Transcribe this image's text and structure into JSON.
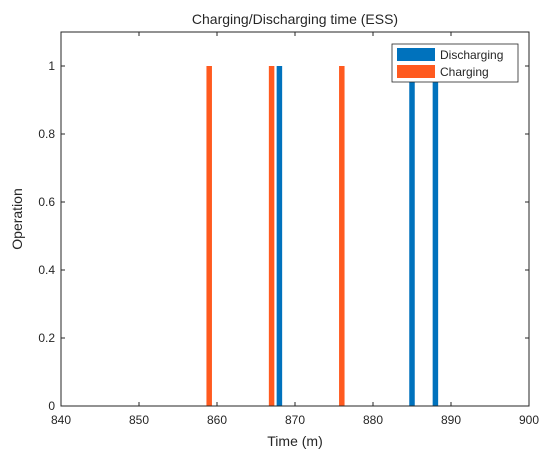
{
  "chart_data": {
    "type": "bar",
    "title": "Charging/Discharging time (ESS)",
    "xlabel": "Time (m)",
    "ylabel": "Operation",
    "xlim": [
      840,
      900
    ],
    "ylim": [
      0,
      1.1
    ],
    "xticks": [
      "840",
      "850",
      "860",
      "870",
      "880",
      "890",
      "900"
    ],
    "yticks": [
      "0",
      "0.2",
      "0.4",
      "0.6",
      "0.8",
      "1"
    ],
    "grid": false,
    "legend_position": "top-right",
    "series": [
      {
        "name": "Discharging",
        "color": "#0072BD",
        "x": [
          868,
          885,
          888
        ],
        "values": [
          1,
          1,
          1
        ]
      },
      {
        "name": "Charging",
        "color": "#FF5A1F",
        "x": [
          859,
          867,
          876
        ],
        "values": [
          1,
          1,
          1
        ]
      }
    ]
  }
}
